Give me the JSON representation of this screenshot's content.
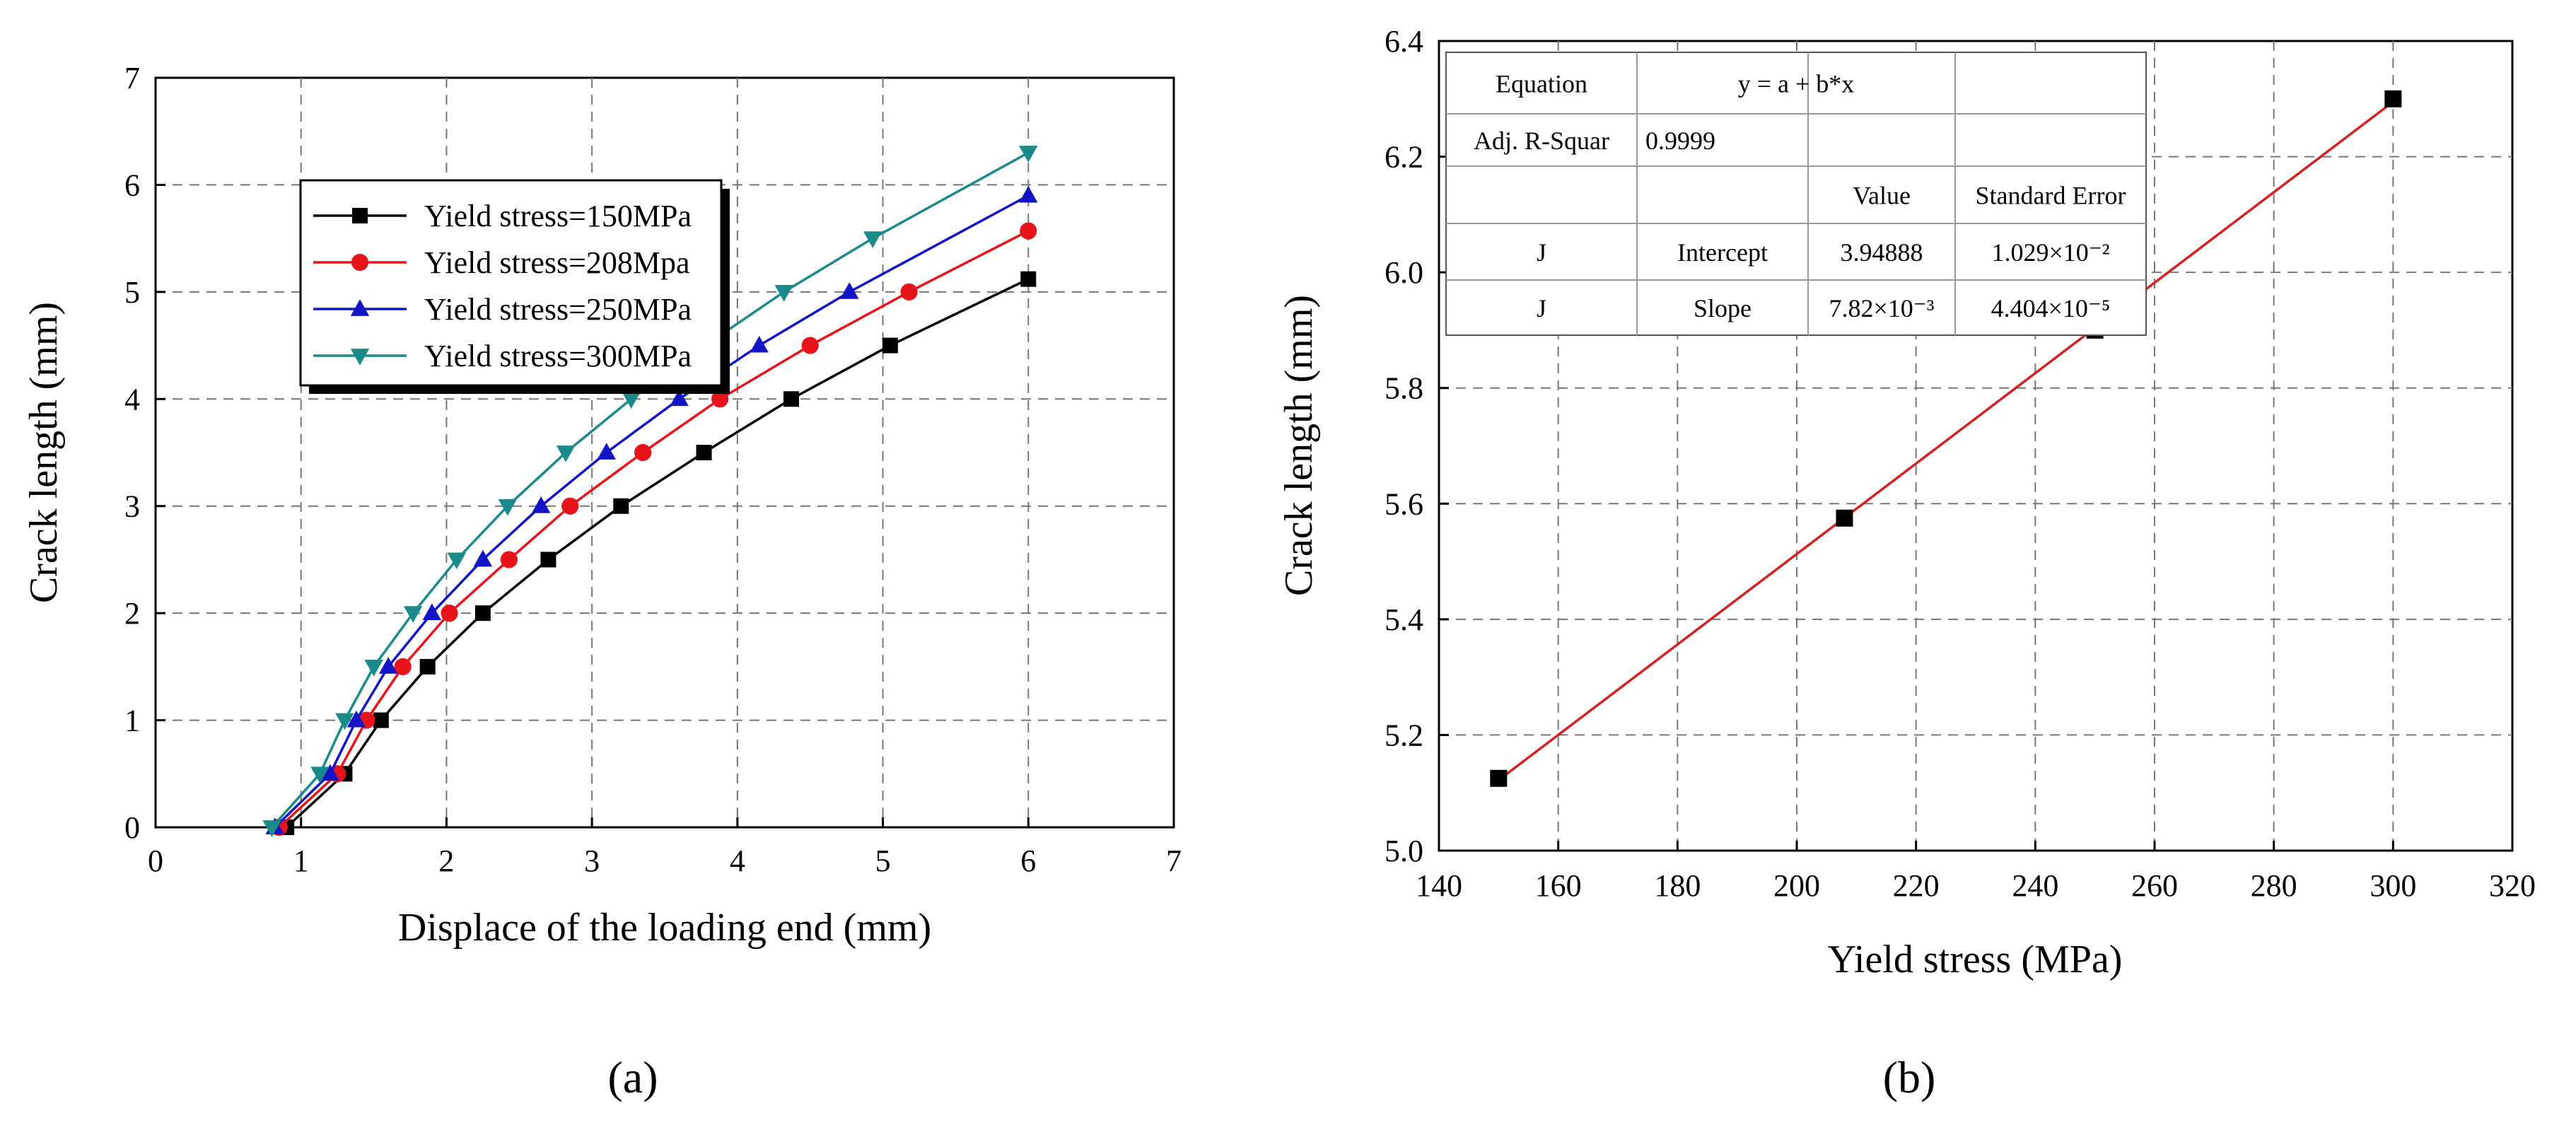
{
  "chart_data": [
    {
      "type": "line",
      "panel_label": "(a)",
      "xlabel": "Displace of the loading end (mm)",
      "ylabel": "Crack length (mm)",
      "xlim": [
        0,
        7
      ],
      "ylim": [
        0,
        7
      ],
      "xticks": [
        0,
        1,
        2,
        3,
        4,
        5,
        6,
        7
      ],
      "yticks": [
        0,
        1,
        2,
        3,
        4,
        5,
        6,
        7
      ],
      "grid": true,
      "legend_position": "top-left",
      "series": [
        {
          "name": "Yield stress=150MPa",
          "color": "#000000",
          "marker": "square",
          "points": [
            [
              0.9,
              0
            ],
            [
              1.3,
              0.5
            ],
            [
              1.55,
              1.0
            ],
            [
              1.87,
              1.5
            ],
            [
              2.25,
              2.0
            ],
            [
              2.7,
              2.5
            ],
            [
              3.2,
              3.0
            ],
            [
              3.77,
              3.5
            ],
            [
              4.37,
              4.0
            ],
            [
              5.05,
              4.5
            ],
            [
              6.0,
              5.12
            ]
          ]
        },
        {
          "name": "Yield stress=208Mpa",
          "color": "#e8141b",
          "marker": "circle",
          "points": [
            [
              0.85,
              0
            ],
            [
              1.25,
              0.5
            ],
            [
              1.45,
              1.0
            ],
            [
              1.7,
              1.5
            ],
            [
              2.02,
              2.0
            ],
            [
              2.43,
              2.5
            ],
            [
              2.85,
              3.0
            ],
            [
              3.35,
              3.5
            ],
            [
              3.88,
              4.0
            ],
            [
              4.5,
              4.5
            ],
            [
              5.18,
              5.0
            ],
            [
              6.0,
              5.57
            ]
          ]
        },
        {
          "name": "Yield stress=250MPa",
          "color": "#1515c8",
          "marker": "triangle-up",
          "points": [
            [
              0.82,
              0
            ],
            [
              1.2,
              0.5
            ],
            [
              1.38,
              1.0
            ],
            [
              1.6,
              1.5
            ],
            [
              1.9,
              2.0
            ],
            [
              2.25,
              2.5
            ],
            [
              2.65,
              3.0
            ],
            [
              3.1,
              3.5
            ],
            [
              3.6,
              4.0
            ],
            [
              4.15,
              4.5
            ],
            [
              4.77,
              5.0
            ],
            [
              6.0,
              5.9
            ]
          ]
        },
        {
          "name": "Yield stress=300MPa",
          "color": "#1a8a8a",
          "marker": "triangle-down",
          "points": [
            [
              0.8,
              0
            ],
            [
              1.13,
              0.5
            ],
            [
              1.3,
              1.0
            ],
            [
              1.5,
              1.5
            ],
            [
              1.77,
              2.0
            ],
            [
              2.07,
              2.5
            ],
            [
              2.42,
              3.0
            ],
            [
              2.82,
              3.5
            ],
            [
              3.27,
              4.0
            ],
            [
              3.78,
              4.5
            ],
            [
              4.32,
              5.0
            ],
            [
              4.93,
              5.5
            ],
            [
              6.0,
              6.3
            ]
          ]
        }
      ]
    },
    {
      "type": "scatter",
      "panel_label": "(b)",
      "xlabel": "Yield stress (MPa)",
      "ylabel": "Crack length (mm)",
      "xlim": [
        140,
        320
      ],
      "ylim": [
        5.0,
        6.4
      ],
      "xticks": [
        140,
        160,
        180,
        200,
        220,
        240,
        260,
        280,
        300,
        320
      ],
      "yticks": [
        "5.0",
        "5.2",
        "5.4",
        "5.6",
        "5.8",
        "6.0",
        "6.2",
        "6.4"
      ],
      "grid": true,
      "points": [
        [
          150,
          5.125
        ],
        [
          208,
          5.575
        ],
        [
          250,
          5.9
        ],
        [
          300,
          6.3
        ]
      ],
      "marker_color": "#000000",
      "fit": {
        "color": "#d42020",
        "intercept": 3.94888,
        "slope": 0.00782,
        "x_range": [
          150,
          300
        ]
      },
      "stats_table": {
        "rows": [
          [
            "Equation",
            "y = a + b*x",
            ""
          ],
          [
            "Adj. R-Squar",
            "0.9999",
            ""
          ],
          [
            "",
            "",
            "Value",
            "Standard Error"
          ],
          [
            "J",
            "Intercept",
            "3.94888",
            "1.029×10⁻²"
          ],
          [
            "J",
            "Slope",
            "7.82×10⁻³",
            "4.404×10⁻⁵"
          ]
        ]
      }
    }
  ]
}
